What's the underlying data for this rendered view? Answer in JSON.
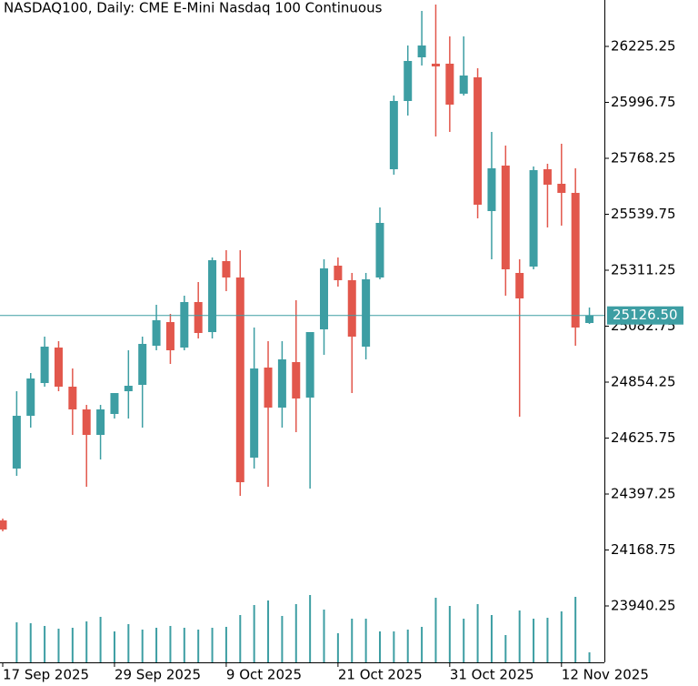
{
  "chart_data": {
    "type": "candlestick",
    "title": "NASDAQ100, Daily:  CME E-Mini Nasdaq 100 Continuous",
    "categories": [
      "17 Sep 2025",
      null,
      null,
      null,
      null,
      null,
      null,
      null,
      "29 Sep 2025",
      null,
      null,
      null,
      null,
      null,
      null,
      null,
      "9 Oct 2025",
      null,
      null,
      null,
      null,
      null,
      null,
      null,
      "21 Oct 2025",
      null,
      null,
      null,
      null,
      null,
      null,
      null,
      "31 Oct 2025",
      null,
      null,
      null,
      null,
      null,
      null,
      null,
      "12 Nov 2025",
      null,
      null
    ],
    "open": [
      24289.5,
      24501.3,
      24716.8,
      24850.5,
      24995.4,
      24835.7,
      24742.8,
      24638.7,
      24724.2,
      24817.1,
      24843.1,
      25002.8,
      25099.4,
      24995.4,
      25181.2,
      25058.6,
      25348.4,
      25281.5,
      24545.9,
      24913.7,
      24750.2,
      24936.0,
      24791.1,
      25069.7,
      25329.8,
      25270.4,
      24999.1,
      25281.5,
      25723.6,
      26002.3,
      26180.6,
      26154.6,
      26154.6,
      26032.0,
      26098.9,
      25552.7,
      25738.5,
      25300.1,
      25326.1,
      25723.6,
      25664.2,
      25627.0,
      25095.7
    ],
    "high": [
      24296.9,
      24817.1,
      24891.4,
      25040.0,
      25021.4,
      24910.0,
      24761.3,
      24761.3,
      24809.6,
      24984.3,
      25040.0,
      25170.0,
      25132.9,
      25207.2,
      25262.9,
      25363.2,
      25393.0,
      25393.0,
      25077.2,
      25021.4,
      25021.4,
      25188.6,
      25058.6,
      25355.8,
      25363.2,
      25300.1,
      25300.1,
      25567.6,
      26024.6,
      26228.9,
      26370.1,
      26396.1,
      26266.1,
      26266.1,
      26136.0,
      25876.0,
      25820.2,
      25355.8,
      25734.8,
      25745.9,
      25827.7,
      25727.4,
      25158.9
    ],
    "low": [
      24245.0,
      24471.5,
      24668.5,
      24835.7,
      24817.1,
      24638.7,
      24427.0,
      24538.4,
      24705.6,
      24705.6,
      24668.5,
      24984.3,
      24928.5,
      24984.3,
      25032.6,
      25032.6,
      25225.8,
      24389.8,
      24501.3,
      24427.0,
      24668.5,
      24649.9,
      24419.5,
      24965.7,
      25244.3,
      24809.6,
      24947.1,
      25274.1,
      25701.3,
      25942.8,
      26147.2,
      25857.4,
      25876.0,
      26024.6,
      25523.0,
      25355.8,
      25207.2,
      24713.0,
      25314.9,
      25485.8,
      25493.3,
      25002.8,
      25092.0
    ],
    "close": [
      24252.3,
      24716.8,
      24869.1,
      24999.1,
      24835.7,
      24742.8,
      24638.7,
      24742.8,
      24809.6,
      24839.4,
      25010.3,
      25106.9,
      24984.3,
      25181.2,
      25054.9,
      25352.1,
      25281.5,
      24445.5,
      24910.0,
      24750.2,
      24947.1,
      24787.4,
      25058.6,
      25318.7,
      25270.4,
      25040.0,
      25274.1,
      25504.4,
      26002.3,
      26165.8,
      26228.9,
      26143.5,
      25987.4,
      26106.3,
      25578.7,
      25727.4,
      25314.9,
      25196.0,
      25719.9,
      25660.5,
      25627.0,
      25077.2,
      25126.5
    ],
    "volumes": [
      null,
      44,
      43,
      40,
      37,
      38,
      45,
      50,
      34,
      42,
      36,
      38,
      40,
      38,
      36,
      38,
      39,
      52,
      63,
      68,
      51,
      64,
      74,
      58,
      32,
      48,
      48,
      34,
      34,
      36,
      39,
      71,
      62,
      48,
      64,
      52,
      30,
      57,
      48,
      49,
      56,
      72,
      11
    ],
    "up_color": "#3d9ea3",
    "down_color": "#e2574c",
    "volume_color": "#3d9ea3",
    "ylim": [
      23709.9,
      26414.7
    ],
    "yticks": [
      23940.25,
      24168.75,
      24397.25,
      24625.75,
      24854.25,
      25082.75,
      25311.25,
      25539.75,
      25768.25,
      25996.75,
      26225.25
    ],
    "current_price": {
      "value": 25126.5,
      "label": "25126.50"
    }
  }
}
